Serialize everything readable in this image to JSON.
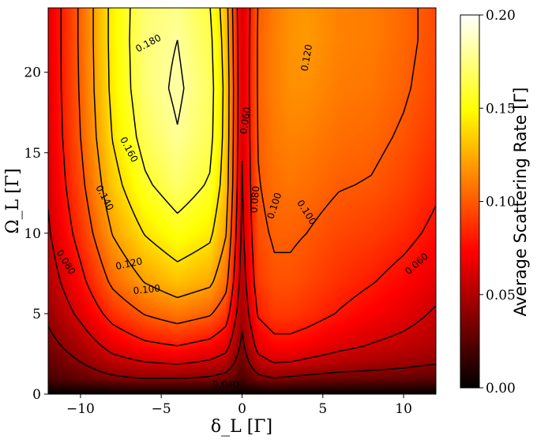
{
  "chart_data": {
    "type": "heatmap",
    "title": "",
    "xlabel": "δ_L [Γ]",
    "ylabel": "Ω_L [Γ]",
    "xlim": [
      -12,
      12
    ],
    "ylim": [
      0,
      24
    ],
    "xticks": [
      -10,
      -5,
      0,
      5,
      10
    ],
    "xtick_labels": [
      "−10",
      "−5",
      "0",
      "5",
      "10"
    ],
    "yticks": [
      0,
      5,
      10,
      15,
      20
    ],
    "ytick_labels": [
      "0",
      "5",
      "10",
      "15",
      "20"
    ],
    "colormap": "hot",
    "colorbar": {
      "label": "Average Scattering Rate [Γ]",
      "range": [
        0.0,
        0.2
      ],
      "ticks": [
        0.0,
        0.05,
        0.1,
        0.15,
        0.2
      ],
      "tick_labels": [
        "0.00",
        "0.05",
        "0.10",
        "0.15",
        "0.20"
      ]
    },
    "x": [
      -12,
      -10,
      -8,
      -6,
      -4,
      -2,
      -1,
      0,
      1,
      2,
      3,
      4,
      6,
      8,
      10,
      12
    ],
    "y": [
      0,
      1,
      2,
      3,
      5,
      7,
      10,
      13,
      16,
      19,
      22,
      24
    ],
    "z": [
      [
        0.0,
        0.0,
        0.0,
        0.0,
        0.0,
        0.0,
        0.0,
        0.0,
        0.0,
        0.0,
        0.0,
        0.0,
        0.0,
        0.0,
        0.0,
        0.0
      ],
      [
        0.022,
        0.029,
        0.037,
        0.041,
        0.041,
        0.038,
        0.034,
        0.022,
        0.036,
        0.04,
        0.038,
        0.036,
        0.033,
        0.032,
        0.03,
        0.027
      ],
      [
        0.028,
        0.04,
        0.054,
        0.06,
        0.063,
        0.058,
        0.052,
        0.03,
        0.054,
        0.061,
        0.06,
        0.057,
        0.052,
        0.049,
        0.046,
        0.042
      ],
      [
        0.034,
        0.049,
        0.066,
        0.076,
        0.08,
        0.074,
        0.066,
        0.036,
        0.066,
        0.074,
        0.074,
        0.071,
        0.064,
        0.059,
        0.055,
        0.05
      ],
      [
        0.044,
        0.064,
        0.087,
        0.101,
        0.109,
        0.102,
        0.089,
        0.045,
        0.082,
        0.09,
        0.09,
        0.087,
        0.079,
        0.072,
        0.066,
        0.058
      ],
      [
        0.051,
        0.075,
        0.104,
        0.121,
        0.131,
        0.124,
        0.106,
        0.051,
        0.09,
        0.097,
        0.097,
        0.094,
        0.087,
        0.081,
        0.074,
        0.066
      ],
      [
        0.058,
        0.087,
        0.121,
        0.141,
        0.153,
        0.144,
        0.121,
        0.056,
        0.096,
        0.102,
        0.102,
        0.1,
        0.094,
        0.091,
        0.085,
        0.076
      ],
      [
        0.062,
        0.095,
        0.133,
        0.157,
        0.17,
        0.158,
        0.13,
        0.059,
        0.099,
        0.106,
        0.108,
        0.106,
        0.101,
        0.099,
        0.093,
        0.083
      ],
      [
        0.064,
        0.1,
        0.141,
        0.167,
        0.179,
        0.166,
        0.133,
        0.061,
        0.101,
        0.109,
        0.112,
        0.111,
        0.106,
        0.104,
        0.098,
        0.089
      ],
      [
        0.065,
        0.102,
        0.145,
        0.172,
        0.183,
        0.168,
        0.134,
        0.062,
        0.102,
        0.111,
        0.116,
        0.116,
        0.11,
        0.108,
        0.102,
        0.093
      ],
      [
        0.065,
        0.103,
        0.146,
        0.173,
        0.18,
        0.165,
        0.131,
        0.061,
        0.102,
        0.111,
        0.117,
        0.119,
        0.112,
        0.11,
        0.104,
        0.095
      ],
      [
        0.065,
        0.103,
        0.146,
        0.172,
        0.177,
        0.161,
        0.128,
        0.06,
        0.101,
        0.11,
        0.116,
        0.118,
        0.112,
        0.11,
        0.104,
        0.095
      ]
    ],
    "contour_levels": [
      0.04,
      0.06,
      0.08,
      0.1,
      0.12,
      0.14,
      0.16,
      0.18
    ],
    "contour_labels": [
      {
        "text": "0.180",
        "x": -5.8,
        "y": 21.8,
        "angle": -28
      },
      {
        "text": "0.120",
        "x": 4.0,
        "y": 20.9,
        "angle": -80
      },
      {
        "text": "0.060",
        "x": 0.2,
        "y": 17.0,
        "angle": -82
      },
      {
        "text": "0.160",
        "x": -7.0,
        "y": 15.2,
        "angle": 62
      },
      {
        "text": "0.080",
        "x": 0.8,
        "y": 12.1,
        "angle": -85
      },
      {
        "text": "0.100",
        "x": 2.0,
        "y": 11.7,
        "angle": -72
      },
      {
        "text": "0.100",
        "x": 4.0,
        "y": 11.3,
        "angle": 58
      },
      {
        "text": "0.140",
        "x": -8.5,
        "y": 12.2,
        "angle": 62
      },
      {
        "text": "0.080",
        "x": -10.9,
        "y": 8.2,
        "angle": 58
      },
      {
        "text": "0.120",
        "x": -7.0,
        "y": 8.1,
        "angle": -12
      },
      {
        "text": "0.100",
        "x": -5.9,
        "y": 6.5,
        "angle": -6
      },
      {
        "text": "0.060",
        "x": 10.8,
        "y": 8.1,
        "angle": -42
      },
      {
        "text": "0.040",
        "x": -1.0,
        "y": 0.6,
        "angle": 0
      }
    ]
  }
}
